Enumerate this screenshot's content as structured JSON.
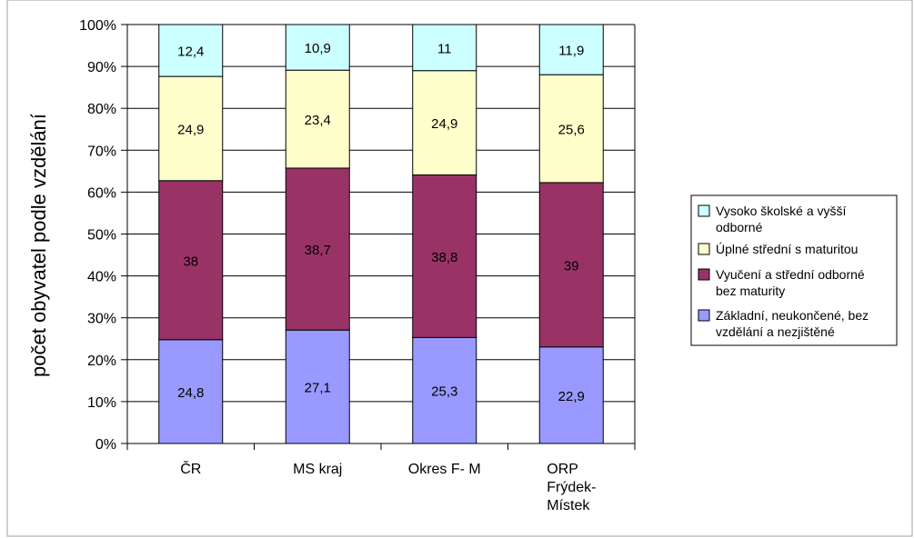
{
  "chart_data": {
    "type": "bar",
    "stacked": true,
    "normalized": true,
    "title": "",
    "xlabel": "",
    "ylabel": "počet obyvatel podle vzdělání",
    "ylim": [
      0,
      100
    ],
    "yticks": [
      "0%",
      "10%",
      "20%",
      "30%",
      "40%",
      "50%",
      "60%",
      "70%",
      "80%",
      "90%",
      "100%"
    ],
    "categories": [
      "ČR",
      "MS kraj",
      "Okres F- M",
      "ORP Frýdek-Místek"
    ],
    "category_lines": [
      [
        "ČR"
      ],
      [
        "MS kraj"
      ],
      [
        "Okres F- M"
      ],
      [
        "ORP",
        "Frýdek-",
        "Místek"
      ]
    ],
    "series": [
      {
        "name": "Základní, neukončené, bez vzdělání a nezjištěné",
        "color": "#9999ff",
        "values": [
          24.8,
          27.1,
          25.3,
          22.9
        ],
        "labels": [
          "24,8",
          "27,1",
          "25,3",
          "22,9"
        ]
      },
      {
        "name": "Vyučení a střední odborné bez maturity",
        "color": "#993366",
        "values": [
          38,
          38.7,
          38.8,
          39
        ],
        "labels": [
          "38",
          "38,7",
          "38,8",
          "39"
        ]
      },
      {
        "name": "Úplné střední s maturitou",
        "color": "#ffffcc",
        "values": [
          24.9,
          23.4,
          24.9,
          25.6
        ],
        "labels": [
          "24,9",
          "23,4",
          "24,9",
          "25,6"
        ]
      },
      {
        "name": "Vysoko školské a vyšší odborné",
        "color": "#ccffff",
        "values": [
          12.4,
          10.9,
          11,
          11.9
        ],
        "labels": [
          "12,4",
          "10,9",
          "11",
          "11,9"
        ]
      }
    ],
    "legend": {
      "position": "right",
      "entries": [
        {
          "series": 3,
          "lines": [
            "Vysoko školské a vyšší",
            "odborné"
          ]
        },
        {
          "series": 2,
          "lines": [
            "Úplné střední s maturitou"
          ]
        },
        {
          "series": 1,
          "lines": [
            "Vyučení a střední odborné",
            "bez maturity"
          ]
        },
        {
          "series": 0,
          "lines": [
            "Základní, neukončené, bez",
            "vzdělání a nezjištěné"
          ]
        }
      ]
    },
    "grid": true
  }
}
